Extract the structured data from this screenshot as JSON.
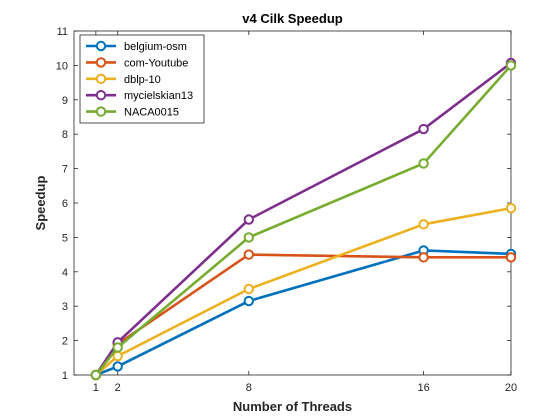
{
  "chart_data": {
    "type": "line",
    "title": "v4 Cilk Speedup",
    "xlabel": "Number of Threads",
    "ylabel": "Speedup",
    "x": [
      1,
      2,
      8,
      16,
      20
    ],
    "xticks": [
      1,
      2,
      8,
      16,
      20
    ],
    "xlim": [
      0,
      20
    ],
    "ylim": [
      1,
      11
    ],
    "yticks": [
      1,
      2,
      3,
      4,
      5,
      6,
      7,
      8,
      9,
      10,
      11
    ],
    "grid": false,
    "legend_position": "top-left",
    "marker": "circle",
    "series": [
      {
        "name": "belgium-osm",
        "color": "#0072BD",
        "values": [
          1.0,
          1.25,
          3.15,
          4.62,
          4.52
        ]
      },
      {
        "name": "com-Youtube",
        "color": "#D95319",
        "values": [
          1.0,
          1.9,
          4.5,
          4.42,
          4.42
        ]
      },
      {
        "name": "dblp-10",
        "color": "#EDB120",
        "values": [
          1.0,
          1.55,
          3.5,
          5.38,
          5.85
        ]
      },
      {
        "name": "mycielskian13",
        "color": "#7E2F8E",
        "values": [
          1.0,
          1.95,
          5.52,
          8.15,
          10.07
        ]
      },
      {
        "name": "NACA0015",
        "color": "#77AC30",
        "values": [
          1.0,
          1.8,
          5.0,
          7.15,
          10.0
        ]
      }
    ]
  }
}
